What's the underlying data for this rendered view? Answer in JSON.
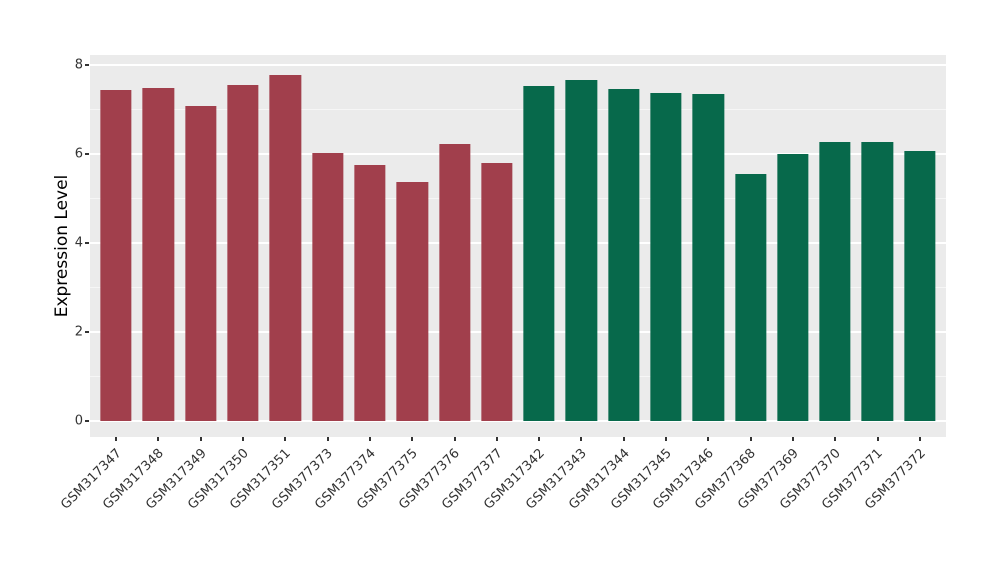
{
  "chart_data": {
    "type": "bar",
    "title": "",
    "xlabel": "",
    "ylabel": "Expression Level",
    "ylim": [
      0,
      8
    ],
    "yticks": [
      0,
      2,
      4,
      6,
      8
    ],
    "yticks_minor": [
      1,
      3,
      5,
      7
    ],
    "grid": "on",
    "legend": "none",
    "plot_background": "#EBEBEB",
    "gridline_color": "#FFFFFF",
    "categories": [
      "GSM317347",
      "GSM317348",
      "GSM317349",
      "GSM317350",
      "GSM317351",
      "GSM377373",
      "GSM377374",
      "GSM377375",
      "GSM377376",
      "GSM377377",
      "GSM317342",
      "GSM317343",
      "GSM317344",
      "GSM317345",
      "GSM317346",
      "GSM377368",
      "GSM377369",
      "GSM377370",
      "GSM377371",
      "GSM377372"
    ],
    "values": [
      7.44,
      7.49,
      7.07,
      7.55,
      7.78,
      6.02,
      5.76,
      5.38,
      6.22,
      5.8,
      7.52,
      7.66,
      7.46,
      7.38,
      7.35,
      5.54,
      6.0,
      6.27,
      6.27,
      6.06
    ],
    "colors": [
      "#A13F4C",
      "#A13F4C",
      "#A13F4C",
      "#A13F4C",
      "#A13F4C",
      "#A13F4C",
      "#A13F4C",
      "#A13F4C",
      "#A13F4C",
      "#A13F4C",
      "#07694B",
      "#07694B",
      "#07694B",
      "#07694B",
      "#07694B",
      "#07694B",
      "#07694B",
      "#07694B",
      "#07694B",
      "#07694B"
    ],
    "group_colors": {
      "left-group": "#A13F4C",
      "right-group": "#07694B"
    }
  }
}
